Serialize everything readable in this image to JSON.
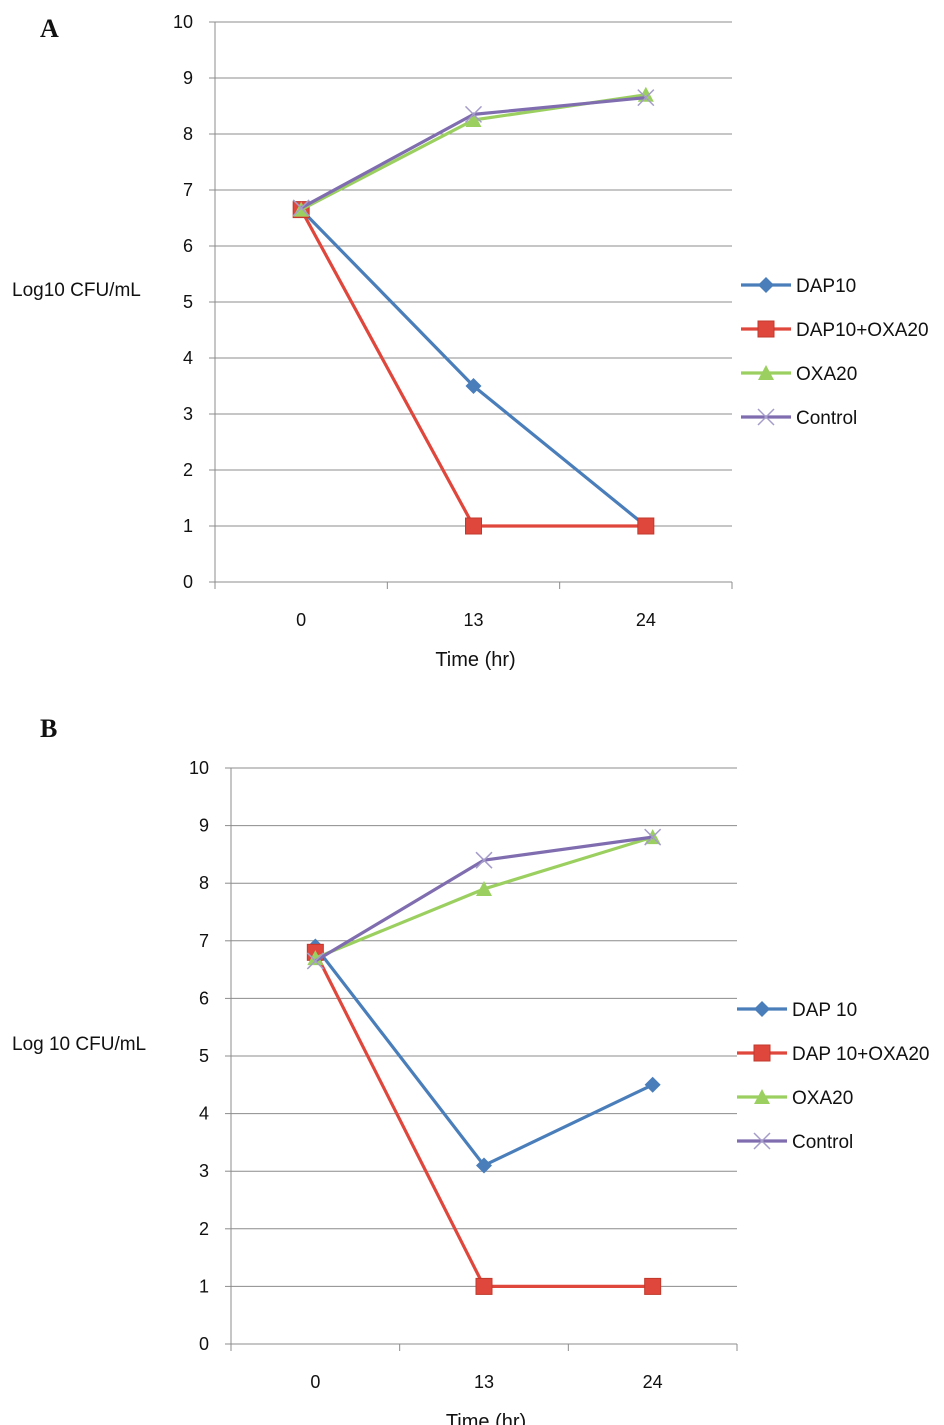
{
  "chart_data": [
    {
      "type": "line",
      "panel_label": "A",
      "categories": [
        "0",
        "13",
        "24"
      ],
      "xlabel": "Time (hr)",
      "ylabel": "Log10 CFU/mL",
      "ylim": [
        0,
        10
      ],
      "yticks": [
        "0",
        "1",
        "2",
        "3",
        "4",
        "5",
        "6",
        "7",
        "8",
        "9",
        "10"
      ],
      "grid": true,
      "legend_position": "right",
      "series": [
        {
          "name": "DAP10",
          "values": [
            6.65,
            3.5,
            1.0
          ],
          "color": "#4a7ebb",
          "marker": "diamond"
        },
        {
          "name": "DAP10+OXA20",
          "values": [
            6.65,
            1.0,
            1.0
          ],
          "color": "#e0473c",
          "marker": "square"
        },
        {
          "name": "OXA20",
          "values": [
            6.65,
            8.25,
            8.7
          ],
          "color": "#9bd060",
          "marker": "triangle"
        },
        {
          "name": "Control",
          "values": [
            6.68,
            8.35,
            8.65
          ],
          "color": "#7f6db0",
          "marker": "x"
        }
      ]
    },
    {
      "type": "line",
      "panel_label": "B",
      "categories": [
        "0",
        "13",
        "24"
      ],
      "xlabel": "Time (hr)",
      "ylabel": "Log 10 CFU/mL",
      "ylim": [
        0,
        10
      ],
      "yticks": [
        "0",
        "1",
        "2",
        "3",
        "4",
        "5",
        "6",
        "7",
        "8",
        "9",
        "10"
      ],
      "grid": true,
      "legend_position": "right",
      "series": [
        {
          "name": "DAP 10",
          "values": [
            6.9,
            3.1,
            4.5
          ],
          "color": "#4a7ebb",
          "marker": "diamond"
        },
        {
          "name": "DAP 10+OXA20",
          "values": [
            6.8,
            1.0,
            1.0
          ],
          "color": "#e0473c",
          "marker": "square"
        },
        {
          "name": "OXA20",
          "values": [
            6.7,
            7.9,
            8.8
          ],
          "color": "#9bd060",
          "marker": "triangle"
        },
        {
          "name": "Control",
          "values": [
            6.65,
            8.4,
            8.8
          ],
          "color": "#7f6db0",
          "marker": "x"
        }
      ]
    }
  ]
}
